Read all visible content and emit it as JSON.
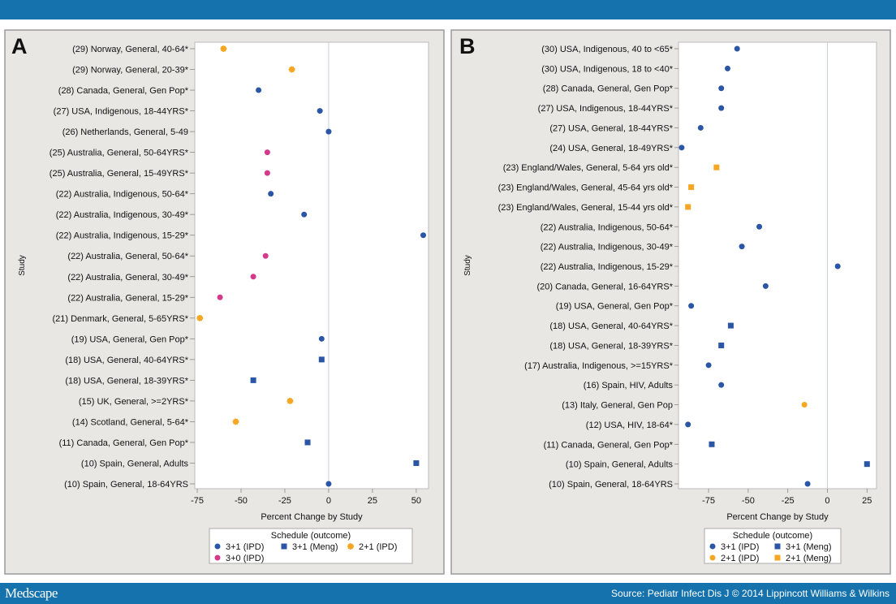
{
  "header": {},
  "footer": {
    "logo": "Medscape",
    "source": "Source: Pediatr Infect Dis J © 2014 Lippincott Williams & Wilkins"
  },
  "colors": {
    "bar": "#1672ac",
    "panel_bg": "#e9e7e4",
    "3+1 (IPD)": "#2b55a5",
    "3+1 (Meng)": "#2b55a5",
    "2+1 (IPD)": "#f5a623",
    "2+1 (Meng)": "#f5a623",
    "3+0 (IPD)": "#d4398a"
  },
  "chart_data": [
    {
      "type": "scatter",
      "panel": "A",
      "xlabel": "Percent Change by Study",
      "ylabel": "Study",
      "xlim": [
        -76.4,
        57
      ],
      "xticks": [
        -75,
        -50,
        -25,
        0,
        25,
        50
      ],
      "reference_line": 0,
      "legend_title": "Schedule (outcome)",
      "legend_placement": "bottom",
      "legend": [
        {
          "label": "3+1 (IPD)",
          "marker": "circle"
        },
        {
          "label": "3+1 (Meng)",
          "marker": "square"
        },
        {
          "label": "2+1 (IPD)",
          "marker": "star"
        },
        {
          "label": "3+0 (IPD)",
          "marker": "circle"
        }
      ],
      "points": [
        {
          "study": "(29) Norway, General, 40-64*",
          "value": -60,
          "schedule": "2+1 (IPD)"
        },
        {
          "study": "(29) Norway, General, 20-39*",
          "value": -21,
          "schedule": "2+1 (IPD)"
        },
        {
          "study": "(28) Canada, General, Gen Pop*",
          "value": -40,
          "schedule": "3+1 (IPD)"
        },
        {
          "study": "(27) USA, Indigenous, 18-44YRS*",
          "value": -5,
          "schedule": "3+1 (IPD)"
        },
        {
          "study": "(26) Netherlands, General, 5-49",
          "value": 0,
          "schedule": "3+1 (IPD)"
        },
        {
          "study": "(25) Australia, General, 50-64YRS*",
          "value": -35,
          "schedule": "3+0 (IPD)"
        },
        {
          "study": "(25) Australia, General, 15-49YRS*",
          "value": -35,
          "schedule": "3+0 (IPD)"
        },
        {
          "study": "(22) Australia, Indigenous, 50-64*",
          "value": -33,
          "schedule": "3+1 (IPD)"
        },
        {
          "study": "(22) Australia, Indigenous, 30-49*",
          "value": -14,
          "schedule": "3+1 (IPD)"
        },
        {
          "study": "(22) Australia, Indigenous, 15-29*",
          "value": 54,
          "schedule": "3+1 (IPD)"
        },
        {
          "study": "(22) Australia, General, 50-64*",
          "value": -36,
          "schedule": "3+0 (IPD)"
        },
        {
          "study": "(22) Australia, General, 30-49*",
          "value": -43,
          "schedule": "3+0 (IPD)"
        },
        {
          "study": "(22) Australia, General, 15-29*",
          "value": -62,
          "schedule": "3+0 (IPD)"
        },
        {
          "study": "(21) Denmark, General, 5-65YRS*",
          "value": -73.5,
          "schedule": "2+1 (IPD)"
        },
        {
          "study": "(19) USA, General, Gen Pop*",
          "value": -4,
          "schedule": "3+1 (IPD)"
        },
        {
          "study": "(18) USA, General, 40-64YRS*",
          "value": -4,
          "schedule": "3+1 (Meng)"
        },
        {
          "study": "(18) USA, General, 18-39YRS*",
          "value": -43,
          "schedule": "3+1 (Meng)"
        },
        {
          "study": "(15) UK, General, >=2YRS*",
          "value": -22,
          "schedule": "2+1 (IPD)"
        },
        {
          "study": "(14) Scotland, General, 5-64*",
          "value": -53,
          "schedule": "2+1 (IPD)"
        },
        {
          "study": "(11) Canada, General, Gen Pop*",
          "value": -12,
          "schedule": "3+1 (Meng)"
        },
        {
          "study": "(10) Spain, General, Adults",
          "value": 50,
          "schedule": "3+1 (Meng)"
        },
        {
          "study": "(10) Spain, General, 18-64YRS",
          "value": 0,
          "schedule": "3+1 (IPD)"
        }
      ]
    },
    {
      "type": "scatter",
      "panel": "B",
      "xlabel": "Percent Change by Study",
      "ylabel": "Study",
      "xlim": [
        -94,
        31
      ],
      "xticks": [
        -75,
        -50,
        -25,
        0,
        25
      ],
      "reference_line": 0,
      "legend_title": "Schedule (outcome)",
      "legend_placement": "bottom",
      "legend": [
        {
          "label": "3+1 (IPD)",
          "marker": "circle"
        },
        {
          "label": "3+1 (Meng)",
          "marker": "square"
        },
        {
          "label": "2+1 (IPD)",
          "marker": "circle"
        },
        {
          "label": "2+1 (Meng)",
          "marker": "square"
        }
      ],
      "points": [
        {
          "study": "(30) USA, Indigenous, 40 to <65*",
          "value": -57,
          "schedule": "3+1 (IPD)"
        },
        {
          "study": "(30) USA, Indigenous, 18 to <40*",
          "value": -63,
          "schedule": "3+1 (IPD)"
        },
        {
          "study": "(28) Canada, General, Gen Pop*",
          "value": -67,
          "schedule": "3+1 (IPD)"
        },
        {
          "study": "(27) USA, Indigenous, 18-44YRS*",
          "value": -67,
          "schedule": "3+1 (IPD)"
        },
        {
          "study": "(27) USA, General, 18-44YRS*",
          "value": -80,
          "schedule": "3+1 (IPD)"
        },
        {
          "study": "(24) USA, General, 18-49YRS*",
          "value": -92,
          "schedule": "3+1 (IPD)"
        },
        {
          "study": "(23) England/Wales, General, 5-64 yrs old*",
          "value": -70,
          "schedule": "2+1 (Meng)"
        },
        {
          "study": "(23) England/Wales, General, 45-64 yrs old*",
          "value": -86,
          "schedule": "2+1 (Meng)"
        },
        {
          "study": "(23) England/Wales, General, 15-44 yrs old*",
          "value": -88,
          "schedule": "2+1 (Meng)"
        },
        {
          "study": "(22) Australia, Indigenous, 50-64*",
          "value": -43,
          "schedule": "3+1 (IPD)"
        },
        {
          "study": "(22) Australia, Indigenous, 30-49*",
          "value": -54,
          "schedule": "3+1 (IPD)"
        },
        {
          "study": "(22) Australia, Indigenous, 15-29*",
          "value": 6.5,
          "schedule": "3+1 (IPD)"
        },
        {
          "study": "(20) Canada, General, 16-64YRS*",
          "value": -39,
          "schedule": "3+1 (IPD)"
        },
        {
          "study": "(19) USA, General, Gen Pop*",
          "value": -86,
          "schedule": "3+1 (IPD)"
        },
        {
          "study": "(18) USA, General, 40-64YRS*",
          "value": -61,
          "schedule": "3+1 (Meng)"
        },
        {
          "study": "(18) USA, General, 18-39YRS*",
          "value": -67,
          "schedule": "3+1 (Meng)"
        },
        {
          "study": "(17) Australia, Indigenous, >=15YRS*",
          "value": -75,
          "schedule": "3+1 (IPD)"
        },
        {
          "study": "(16) Spain, HIV, Adults",
          "value": -67,
          "schedule": "3+1 (IPD)"
        },
        {
          "study": "(13) Italy, General, Gen Pop",
          "value": -14.5,
          "schedule": "2+1 (IPD)"
        },
        {
          "study": "(12) USA, HIV, 18-64*",
          "value": -88,
          "schedule": "3+1 (IPD)"
        },
        {
          "study": "(11) Canada, General, Gen Pop*",
          "value": -73,
          "schedule": "3+1 (Meng)"
        },
        {
          "study": "(10) Spain, General, Adults",
          "value": 25,
          "schedule": "3+1 (Meng)"
        },
        {
          "study": "(10) Spain, General, 18-64YRS",
          "value": -12.5,
          "schedule": "3+1 (IPD)"
        }
      ]
    }
  ]
}
